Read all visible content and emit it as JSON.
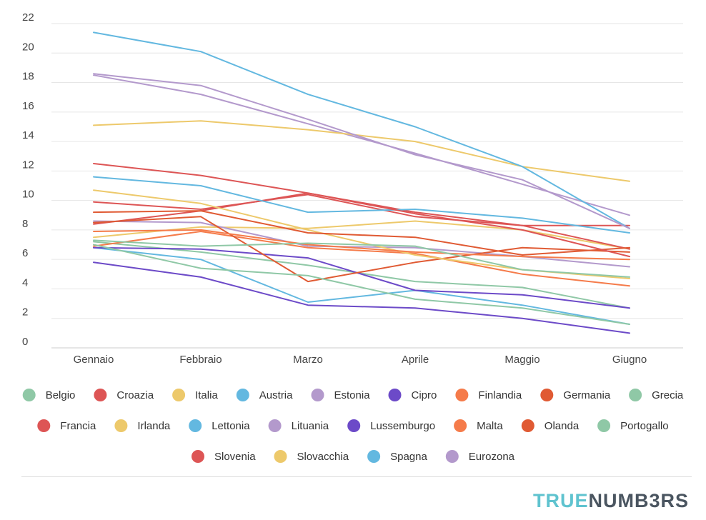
{
  "chart_data": {
    "type": "line",
    "categories": [
      "Gennaio",
      "Febbraio",
      "Marzo",
      "Aprile",
      "Maggio",
      "Giugno"
    ],
    "ylim": [
      0,
      22
    ],
    "yticks": [
      "0",
      "2",
      "4",
      "6",
      "8",
      "10",
      "12",
      "14",
      "16",
      "18",
      "20",
      "22"
    ],
    "grid": true,
    "legend_position": "bottom",
    "series": [
      {
        "name": "Belgio",
        "color": "#8fc8a6",
        "values": [
          7.2,
          6.5,
          5.6,
          4.5,
          4.1,
          2.7
        ]
      },
      {
        "name": "Croazia",
        "color": "#dd5555",
        "values": [
          8.4,
          9.3,
          10.5,
          9.2,
          8.3,
          8.3
        ]
      },
      {
        "name": "Italia",
        "color": "#edc96b",
        "values": [
          7.5,
          8.2,
          8.1,
          8.6,
          8.0,
          6.7
        ]
      },
      {
        "name": "Austria",
        "color": "#63b8e0",
        "values": [
          6.8,
          6.0,
          3.1,
          3.9,
          2.9,
          1.6
        ]
      },
      {
        "name": "Estonia",
        "color": "#b399cc",
        "values": [
          8.6,
          8.5,
          6.9,
          6.8,
          6.2,
          5.5
        ]
      },
      {
        "name": "Cipro",
        "color": "#6c4ac8",
        "values": [
          6.8,
          6.7,
          6.1,
          3.9,
          3.6,
          2.7
        ]
      },
      {
        "name": "Finlandia",
        "color": "#f57b4a",
        "values": [
          6.9,
          7.9,
          6.8,
          6.4,
          5.0,
          4.2
        ]
      },
      {
        "name": "Germania",
        "color": "#e05a33",
        "values": [
          8.5,
          8.9,
          4.5,
          5.8,
          6.8,
          6.5
        ]
      },
      {
        "name": "Grecia",
        "color": "#8fc8a6",
        "values": [
          7.0,
          5.4,
          4.9,
          3.3,
          2.7,
          1.6
        ]
      },
      {
        "name": "Francia",
        "color": "#dd5555",
        "values": [
          9.9,
          9.4,
          10.4,
          8.9,
          8.3,
          6.7
        ]
      },
      {
        "name": "Irlanda",
        "color": "#edc96b",
        "values": [
          10.7,
          9.8,
          8.0,
          6.3,
          5.3,
          4.7
        ]
      },
      {
        "name": "Lettonia",
        "color": "#63b8e0",
        "values": [
          11.6,
          11.0,
          9.2,
          9.4,
          8.8,
          7.8
        ]
      },
      {
        "name": "Lituania",
        "color": "#b399cc",
        "values": [
          18.5,
          17.2,
          15.2,
          13.2,
          11.1,
          9.0
        ]
      },
      {
        "name": "Lussemburgo",
        "color": "#6c4ac8",
        "values": [
          5.8,
          4.8,
          2.9,
          2.7,
          2.0,
          1.0
        ]
      },
      {
        "name": "Malta",
        "color": "#f57b4a",
        "values": [
          7.9,
          8.0,
          7.0,
          6.5,
          6.2,
          6.0
        ]
      },
      {
        "name": "Olanda",
        "color": "#e05a33",
        "values": [
          9.2,
          9.3,
          7.8,
          7.5,
          6.3,
          6.8
        ]
      },
      {
        "name": "Portogallo",
        "color": "#8fc8a6",
        "values": [
          7.3,
          6.9,
          7.1,
          6.9,
          5.3,
          4.8
        ]
      },
      {
        "name": "Slovenia",
        "color": "#dd5555",
        "values": [
          12.5,
          11.7,
          10.5,
          9.1,
          8.0,
          6.2
        ]
      },
      {
        "name": "Slovacchia",
        "color": "#edc96b",
        "values": [
          15.1,
          15.4,
          14.8,
          14.0,
          12.3,
          11.3
        ]
      },
      {
        "name": "Spagna",
        "color": "#63b8e0",
        "values": [
          21.4,
          20.1,
          17.2,
          15.0,
          12.3,
          8.1
        ]
      },
      {
        "name": "Eurozona",
        "color": "#b399cc",
        "values": [
          18.6,
          17.8,
          15.5,
          13.1,
          11.4,
          8.1
        ]
      }
    ]
  },
  "footer": {
    "brand_part1": "TRUE",
    "brand_part2": "NUMB3RS"
  }
}
